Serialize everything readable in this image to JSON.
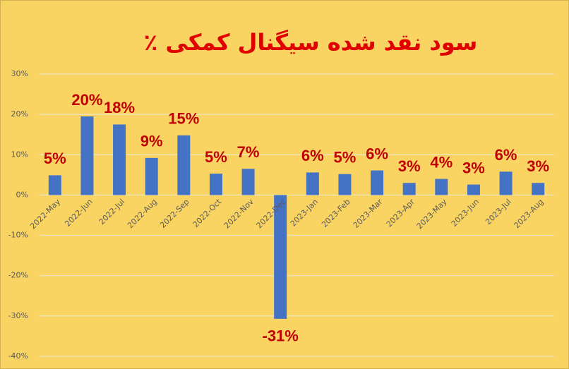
{
  "chart_data": {
    "type": "bar",
    "title": "سود نقد شده سیگنال کمکی ٪",
    "categories": [
      "2022-May",
      "2022-Jun",
      "2022-Jul",
      "2022-Aug",
      "2022-Sep",
      "2022-Oct",
      "2022-Nov",
      "2022-Dec",
      "2023-Jan",
      "2023-Feb",
      "2023-Mar",
      "2023-Apr",
      "2023-May",
      "2023-Jun",
      "2023-Jul",
      "2023-Aug"
    ],
    "values": [
      4.9,
      19.5,
      17.5,
      9.2,
      14.8,
      5.3,
      6.5,
      -30.7,
      5.6,
      5.2,
      6.1,
      3,
      4,
      2.6,
      5.8,
      3
    ],
    "value_labels": [
      "5%",
      "20%",
      "18%",
      "9%",
      "15%",
      "5%",
      "7%",
      "-31%",
      "6%",
      "5%",
      "6%",
      "3%",
      "4%",
      "3%",
      "6%",
      "3%"
    ],
    "color": "#4472c4",
    "ylim": [
      -40,
      30
    ],
    "yticks": [
      {
        "value": -40,
        "label": "-40%"
      },
      {
        "value": -30,
        "label": "-30%"
      },
      {
        "value": -20,
        "label": "-20%"
      },
      {
        "value": -10,
        "label": "-10%"
      },
      {
        "value": 0,
        "label": "0%"
      },
      {
        "value": 10,
        "label": "10%"
      },
      {
        "value": 20,
        "label": "20%"
      },
      {
        "value": 30,
        "label": "30%"
      }
    ],
    "grid": true
  }
}
